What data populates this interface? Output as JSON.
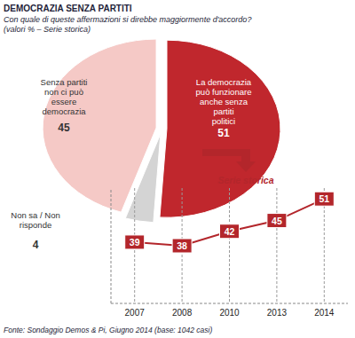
{
  "header": {
    "title": "DEMOCRAZIA SENZA PARTITI",
    "subtitle": [
      "Con quale di queste affermazioni si direbbe maggiormente d'accordo?",
      "(valori % – Serie storica)"
    ]
  },
  "footer": {
    "source": "Fonte: Sondaggio Demos & Pi, Giugno 2014 (base: 1042 casi)"
  },
  "chart_data": [
    {
      "type": "pie",
      "categories": [
        "La democrazia può funzionare anche senza partiti politici",
        "Non sa / Non risponde",
        "Senza partiti non ci può essere democrazia"
      ],
      "values": [
        51,
        4,
        45
      ],
      "colors": [
        "#c0272d",
        "#d4d4d4",
        "#f5c9c6"
      ],
      "data_labels": true
    },
    {
      "type": "line",
      "title": "Serie storica",
      "categories": [
        "2007",
        "2008",
        "2010",
        "2013",
        "2014"
      ],
      "values": [
        39,
        38,
        42,
        45,
        51
      ],
      "color": "#b3262b",
      "ylim": [
        22,
        54
      ],
      "grid": true,
      "marker": "square",
      "data_labels": true,
      "tick_labels": "x"
    }
  ]
}
